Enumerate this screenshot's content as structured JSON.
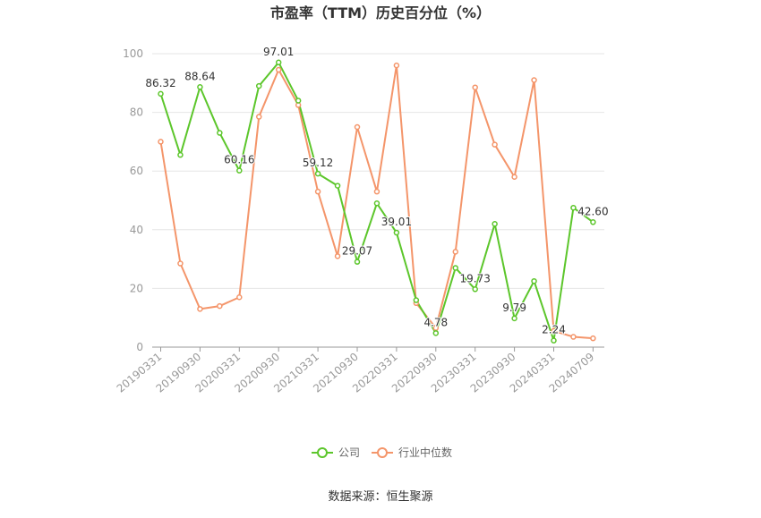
{
  "chart_data": {
    "type": "line",
    "title": "市盈率（TTM）历史百分位（%）",
    "source": "数据来源：恒生聚源",
    "xlabel": "",
    "ylabel": "",
    "ylim": [
      0,
      100
    ],
    "yticks": [
      0,
      20,
      40,
      60,
      80,
      100
    ],
    "grid": true,
    "legend_position": "bottom",
    "x": [
      "20190331",
      "20190630",
      "20190930",
      "20191231",
      "20200331",
      "20200630",
      "20200930",
      "20201231",
      "20210331",
      "20210630",
      "20210930",
      "20211231",
      "20220331",
      "20220630",
      "20220930",
      "20221231",
      "20230331",
      "20230630",
      "20230930",
      "20231231",
      "20240331",
      "20240630",
      "20240709"
    ],
    "x_tick_labels": [
      "20190331",
      "20190930",
      "20200331",
      "20200930",
      "20210331",
      "20210930",
      "20220331",
      "20220930",
      "20230331",
      "20230930",
      "20240331",
      "20240709"
    ],
    "series": [
      {
        "name": "公司",
        "color": "#5cc62b",
        "values": [
          86.32,
          65.5,
          88.64,
          73.0,
          60.16,
          89.0,
          97.01,
          84.0,
          59.12,
          55.0,
          29.07,
          49.0,
          39.01,
          16.0,
          4.78,
          27.0,
          19.73,
          42.0,
          9.79,
          22.5,
          2.24,
          47.5,
          42.6
        ],
        "labels": [
          "86.32",
          "",
          "88.64",
          "",
          "60.16",
          "",
          "97.01",
          "",
          "59.12",
          "",
          "29.07",
          "",
          "39.01",
          "",
          "4.78",
          "",
          "19.73",
          "",
          "9.79",
          "",
          "2.24",
          "",
          "42.60"
        ]
      },
      {
        "name": "行业中位数",
        "color": "#f4956a",
        "values": [
          70.0,
          28.5,
          13.0,
          14.0,
          17.0,
          78.5,
          94.5,
          82.5,
          53.0,
          31.0,
          75.0,
          53.0,
          96.0,
          15.0,
          6.5,
          32.5,
          88.5,
          69.0,
          58.0,
          91.0,
          5.5,
          3.5,
          3.0
        ]
      }
    ]
  }
}
